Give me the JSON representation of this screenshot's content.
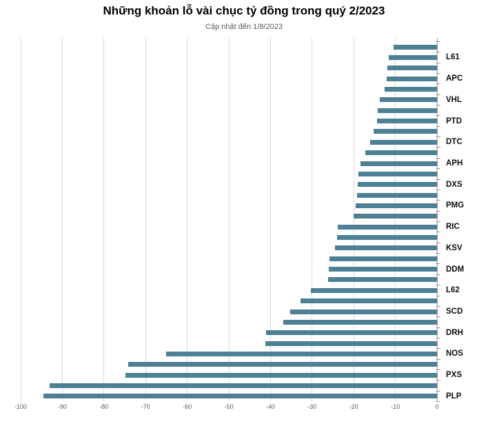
{
  "header": {
    "title": "Những khoản lỗ vài chục tỷ đồng trong quý 2/2023",
    "subtitle": "Cập nhật đến 1/8/2023"
  },
  "colors": {
    "bar": "#4d8095",
    "gridline": "#d9d9d9",
    "axis_line": "#9c9c9c",
    "tick_label": "#595959",
    "category_label": "#0d0d0d",
    "background": "#ffffff"
  },
  "chart_data": {
    "type": "bar",
    "orientation": "horizontal",
    "title": "Những khoản lỗ vài chục tỷ đồng trong quý 2/2023",
    "subtitle": "Cập nhật đến 1/8/2023",
    "xlabel": "",
    "ylabel": "",
    "xlim": [
      -100,
      0
    ],
    "x_ticks": [
      -100,
      -90,
      -80,
      -70,
      -60,
      -50,
      -40,
      -30,
      -20,
      -10,
      0
    ],
    "grid": true,
    "legend": false,
    "note": "Bars ordered top to bottom; unlabeled bars have empty label (axis labels thinned every 2nd category)",
    "bars": [
      {
        "label": "",
        "value": -10.4
      },
      {
        "label": "L61",
        "value": -11.6
      },
      {
        "label": "",
        "value": -12.0
      },
      {
        "label": "APC",
        "value": -12.1
      },
      {
        "label": "",
        "value": -12.6
      },
      {
        "label": "VHL",
        "value": -13.7
      },
      {
        "label": "",
        "value": -14.2
      },
      {
        "label": "PTD",
        "value": -14.4
      },
      {
        "label": "",
        "value": -15.2
      },
      {
        "label": "DTC",
        "value": -16.1
      },
      {
        "label": "",
        "value": -17.2
      },
      {
        "label": "APH",
        "value": -18.3
      },
      {
        "label": "",
        "value": -18.9
      },
      {
        "label": "DXS",
        "value": -19.0
      },
      {
        "label": "",
        "value": -19.2
      },
      {
        "label": "PMG",
        "value": -19.5
      },
      {
        "label": "",
        "value": -20.0
      },
      {
        "label": "RIC",
        "value": -23.9
      },
      {
        "label": "",
        "value": -24.0
      },
      {
        "label": "KSV",
        "value": -24.5
      },
      {
        "label": "",
        "value": -25.9
      },
      {
        "label": "DDM",
        "value": -26.0
      },
      {
        "label": "",
        "value": -26.2
      },
      {
        "label": "L62",
        "value": -30.3
      },
      {
        "label": "",
        "value": -32.8
      },
      {
        "label": "SCD",
        "value": -35.3
      },
      {
        "label": "",
        "value": -37.0
      },
      {
        "label": "DRH",
        "value": -41.1
      },
      {
        "label": "",
        "value": -41.3
      },
      {
        "label": "NOS",
        "value": -65.0
      },
      {
        "label": "",
        "value": -74.1
      },
      {
        "label": "PXS",
        "value": -74.8
      },
      {
        "label": "",
        "value": -93.0
      },
      {
        "label": "PLP",
        "value": -94.6
      }
    ]
  }
}
